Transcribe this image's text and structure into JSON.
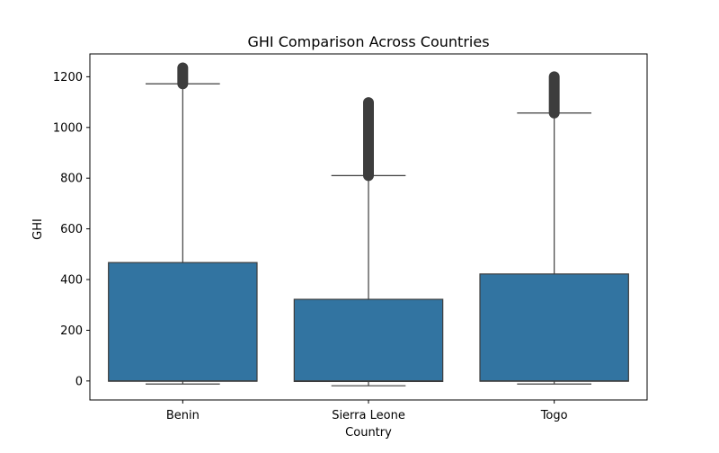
{
  "chart_data": {
    "type": "box",
    "title": "GHI Comparison Across Countries",
    "xlabel": "Country",
    "ylabel": "GHI",
    "categories": [
      "Benin",
      "Sierra Leone",
      "Togo"
    ],
    "ylim": [
      -75,
      1290
    ],
    "yticks": [
      0,
      200,
      400,
      600,
      800,
      1000,
      1200
    ],
    "grid": false,
    "box_color": "#3274a1",
    "line_color": "#3d3d3d",
    "boxes": [
      {
        "category": "Benin",
        "whisker_low": -12,
        "q1": -1,
        "median": 0,
        "q3": 467,
        "whisker_high": 1172,
        "outliers_from": 1172,
        "outliers_to": 1235
      },
      {
        "category": "Sierra Leone",
        "whisker_low": -19,
        "q1": -2,
        "median": 0,
        "q3": 322,
        "whisker_high": 810,
        "outliers_from": 810,
        "outliers_to": 1098
      },
      {
        "category": "Togo",
        "whisker_low": -12,
        "q1": -1,
        "median": 0,
        "q3": 422,
        "whisker_high": 1057,
        "outliers_from": 1057,
        "outliers_to": 1200
      }
    ]
  }
}
